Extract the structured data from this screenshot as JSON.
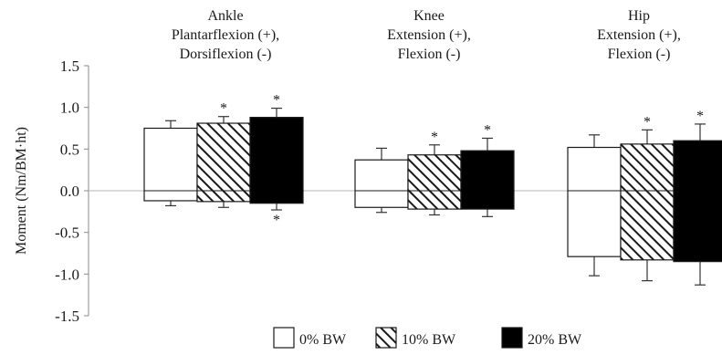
{
  "chart_data": {
    "type": "bar",
    "ylabel": "Moment (Nm/BM·ht)",
    "ylim": [
      -1.5,
      1.5
    ],
    "yticks": [
      "1.5",
      "1.0",
      "0.5",
      "0.0",
      "-0.5",
      "-1.0",
      "-1.5"
    ],
    "zero_line": true,
    "grid": false,
    "legend_position": "bottom",
    "groups": [
      {
        "title_lines": [
          "Ankle",
          "Plantarflexion (+),",
          "Dorsiflexion (-)"
        ]
      },
      {
        "title_lines": [
          "Knee",
          "Extension (+),",
          "Flexion (-)"
        ]
      },
      {
        "title_lines": [
          "Hip",
          "Extension (+),",
          "Flexion (-)"
        ]
      }
    ],
    "series": [
      {
        "name": "0% BW",
        "fill": "white",
        "positive": [
          0.75,
          0.37,
          0.52
        ],
        "positive_sd": [
          0.09,
          0.14,
          0.15
        ],
        "negative": [
          -0.12,
          -0.2,
          -0.79
        ],
        "negative_sd": [
          0.06,
          0.06,
          0.23
        ],
        "sig_positive": [
          false,
          false,
          false
        ],
        "sig_negative": [
          false,
          false,
          false
        ]
      },
      {
        "name": "10% BW",
        "fill": "hatched",
        "positive": [
          0.81,
          0.43,
          0.56
        ],
        "positive_sd": [
          0.08,
          0.12,
          0.17
        ],
        "negative": [
          -0.13,
          -0.22,
          -0.83
        ],
        "negative_sd": [
          0.07,
          0.07,
          0.25
        ],
        "sig_positive": [
          true,
          true,
          true
        ],
        "sig_negative": [
          false,
          false,
          false
        ]
      },
      {
        "name": "20% BW",
        "fill": "black",
        "positive": [
          0.88,
          0.48,
          0.6
        ],
        "positive_sd": [
          0.11,
          0.15,
          0.2
        ],
        "negative": [
          -0.15,
          -0.22,
          -0.85
        ],
        "negative_sd": [
          0.08,
          0.09,
          0.28
        ],
        "sig_positive": [
          true,
          true,
          true
        ],
        "sig_negative": [
          true,
          false,
          false
        ]
      }
    ],
    "sig_marker": "*"
  }
}
